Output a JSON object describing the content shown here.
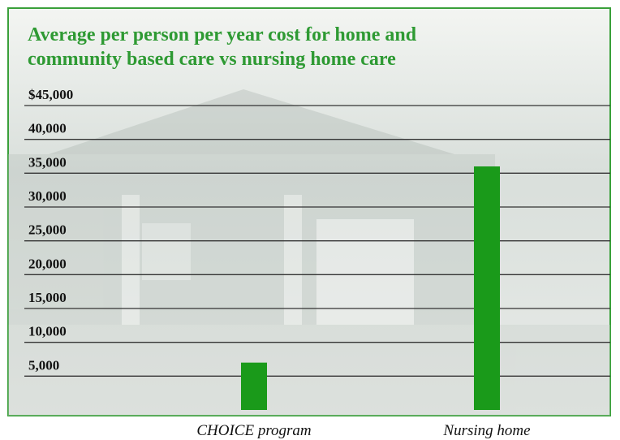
{
  "chart_data": {
    "type": "bar",
    "title": "Average per person per year cost for home and community based care vs nursing home care",
    "categories": [
      "CHOICE program",
      "Nursing home"
    ],
    "values": [
      7000,
      36000
    ],
    "color": "#1a9a1a",
    "ylim": [
      0,
      45000
    ],
    "yticks": [
      {
        "value": 5000,
        "label": "5,000"
      },
      {
        "value": 10000,
        "label": "10,000"
      },
      {
        "value": 15000,
        "label": "15,000"
      },
      {
        "value": 20000,
        "label": "20,000"
      },
      {
        "value": 25000,
        "label": "25,000"
      },
      {
        "value": 30000,
        "label": "30,000"
      },
      {
        "value": 35000,
        "label": "35,000"
      },
      {
        "value": 40000,
        "label": "40,000"
      },
      {
        "value": 45000,
        "label": "$45,000"
      }
    ],
    "grid": true
  }
}
